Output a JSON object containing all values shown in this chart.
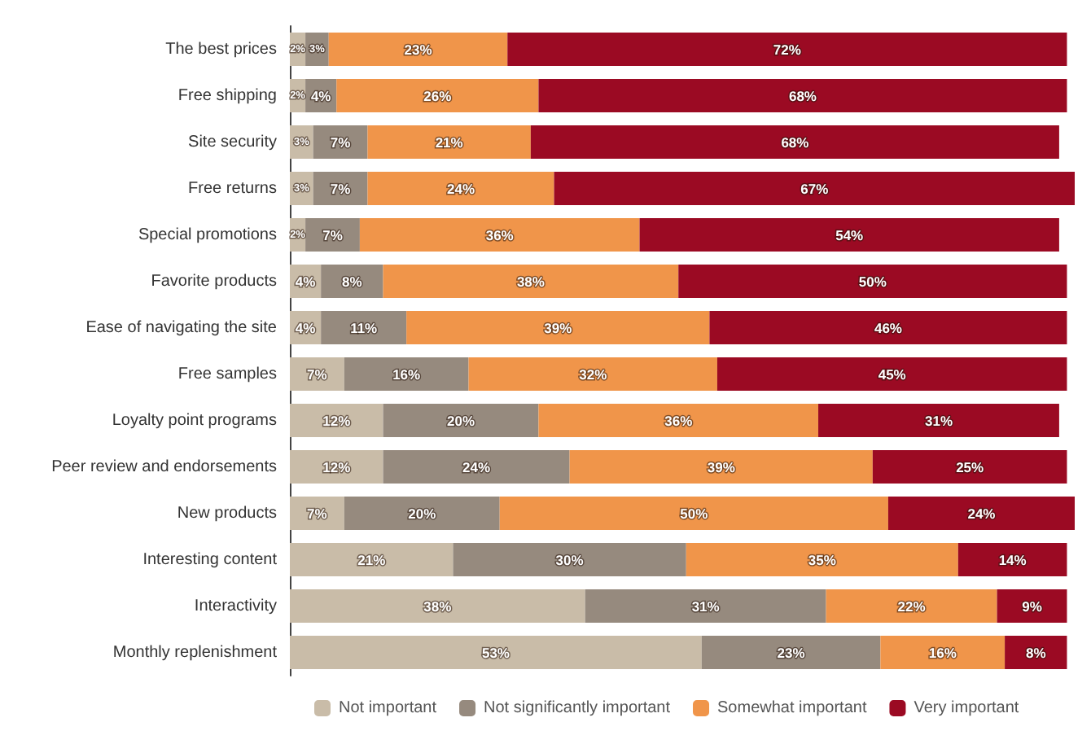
{
  "chart_data": {
    "type": "bar",
    "orientation": "horizontal",
    "stacked": true,
    "legend": "bottom",
    "categories": [
      "The best prices",
      "Free shipping",
      "Site security",
      "Free returns",
      "Special promotions",
      "Favorite products",
      "Ease of navigating the site",
      "Free samples",
      "Loyalty point programs",
      "Peer review and endorsements",
      "New products",
      "Interesting content",
      "Interactivity",
      "Monthly replenishment"
    ],
    "series": [
      {
        "name": "Not important",
        "color": "#c9bca8",
        "values": [
          2,
          2,
          3,
          3,
          2,
          4,
          4,
          7,
          12,
          12,
          7,
          21,
          38,
          53
        ],
        "value_labels": [
          "2%",
          "2%",
          "3%",
          "3%",
          "2%",
          "4%",
          "4%",
          "7%",
          "12%",
          "12%",
          "7%",
          "21%",
          "38%",
          "53%"
        ]
      },
      {
        "name": "Not significantly important",
        "color": "#968a7e",
        "values": [
          3,
          4,
          7,
          7,
          7,
          8,
          11,
          16,
          20,
          24,
          20,
          30,
          31,
          23
        ],
        "value_labels": [
          "3%",
          "4%",
          "7%",
          "7%",
          "7%",
          "8%",
          "11%",
          "16%",
          "20%",
          "24%",
          "20%",
          "30%",
          "31%",
          "23%"
        ]
      },
      {
        "name": "Somewhat important",
        "color": "#f0954a",
        "values": [
          23,
          26,
          21,
          24,
          36,
          38,
          39,
          32,
          36,
          39,
          50,
          35,
          22,
          16
        ],
        "value_labels": [
          "23%",
          "26%",
          "21%",
          "24%",
          "36%",
          "38%",
          "39%",
          "32%",
          "36%",
          "39%",
          "50%",
          "35%",
          "22%",
          "16%"
        ]
      },
      {
        "name": "Very important",
        "color": "#9b0a23",
        "values": [
          72,
          68,
          68,
          67,
          54,
          50,
          46,
          45,
          31,
          25,
          24,
          14,
          9,
          8
        ],
        "value_labels": [
          "72%",
          "68%",
          "68%",
          "67%",
          "54%",
          "50%",
          "46%",
          "45%",
          "31%",
          "25%",
          "24%",
          "14%",
          "9%",
          "8%"
        ]
      }
    ]
  }
}
